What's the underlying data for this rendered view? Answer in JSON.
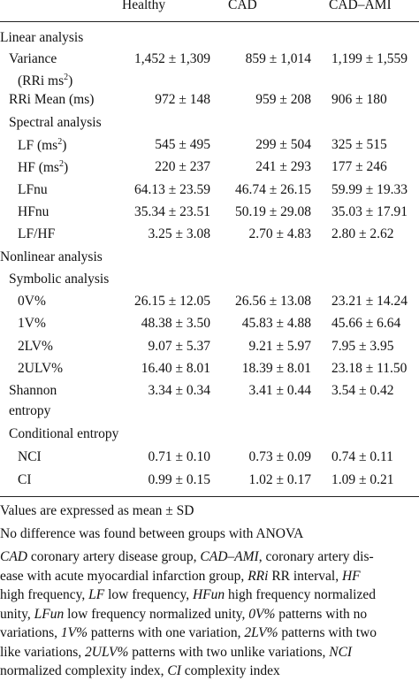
{
  "table": {
    "headers": [
      "Healthy",
      "CAD",
      "CAD–AMI"
    ],
    "rows": [
      {
        "label": "Linear analysis",
        "level": 1
      },
      {
        "label": "Variance",
        "level": 2,
        "values": [
          "1,452 ± 1,309",
          "859 ± 1,014",
          "1,199 ± 1,559"
        ]
      },
      {
        "label": "(RRi ms²)",
        "level": 3
      },
      {
        "label": "RRi Mean (ms)",
        "level": 2,
        "values": [
          "972 ± 148",
          "959 ± 208",
          "906 ± 180"
        ]
      },
      {
        "label": "Spectral analysis",
        "level": 2
      },
      {
        "label": "LF (ms²)",
        "level": 3,
        "values": [
          "545 ± 495",
          "299 ± 504",
          "325 ± 515"
        ]
      },
      {
        "label": "HF (ms²)",
        "level": 3,
        "values": [
          "220 ± 237",
          "241 ± 293",
          "177 ± 246"
        ]
      },
      {
        "label": "LFnu",
        "level": 3,
        "values": [
          "64.13 ± 23.59",
          "46.74 ± 26.15",
          "59.99 ± 19.33"
        ]
      },
      {
        "label": "HFnu",
        "level": 3,
        "values": [
          "35.34 ± 23.51",
          "50.19 ± 29.08",
          "35.03 ± 17.91"
        ]
      },
      {
        "label": "LF/HF",
        "level": 3,
        "values": [
          "3.25 ± 3.08",
          "2.70 ± 4.83",
          "2.80 ± 2.62"
        ]
      },
      {
        "label": "Nonlinear analysis",
        "level": 1
      },
      {
        "label": "Symbolic analysis",
        "level": 2
      },
      {
        "label": "0V%",
        "level": 3,
        "values": [
          "26.15 ± 12.05",
          "26.56 ± 13.08",
          "23.21 ± 14.24"
        ]
      },
      {
        "label": "1V%",
        "level": 3,
        "values": [
          "48.38 ± 3.50",
          "45.83 ± 4.88",
          "45.66 ± 6.64"
        ]
      },
      {
        "label": "2LV%",
        "level": 3,
        "values": [
          "9.07 ± 5.37",
          "9.21 ± 5.97",
          "7.95 ± 3.95"
        ]
      },
      {
        "label": "2ULV%",
        "level": 3,
        "values": [
          "16.40 ± 8.01",
          "18.39 ± 8.01",
          "23.18 ± 11.50"
        ]
      },
      {
        "label": "Shannon",
        "level": 2,
        "values": [
          "3.34 ± 0.34",
          "3.41 ± 0.44",
          "3.54 ± 0.42"
        ]
      },
      {
        "label": "entropy",
        "level": 2
      },
      {
        "label": "Conditional entropy",
        "level": 2
      },
      {
        "label": "NCI",
        "level": 3,
        "values": [
          "0.71 ± 0.10",
          "0.73 ± 0.09",
          "0.74 ± 0.11"
        ]
      },
      {
        "label": "CI",
        "level": 3,
        "values": [
          "0.99 ± 0.15",
          "1.02 ± 0.17",
          "1.09 ± 0.21"
        ]
      }
    ]
  },
  "notes": [
    "Values are expressed as mean ± SD",
    "No difference was found between groups with ANOVA"
  ],
  "footnote_lines": [
    [
      [
        "i",
        "CAD"
      ],
      [
        "t",
        " coronary artery disease group, "
      ],
      [
        "i",
        "CAD–AMI"
      ],
      [
        "t",
        ", coronary artery dis-"
      ]
    ],
    [
      [
        "t",
        "ease with acute myocardial infarction group, "
      ],
      [
        "i",
        "RRi"
      ],
      [
        "t",
        " RR interval, "
      ],
      [
        "i",
        "HF"
      ]
    ],
    [
      [
        "t",
        "high frequency, "
      ],
      [
        "i",
        "LF"
      ],
      [
        "t",
        " low frequency, "
      ],
      [
        "i",
        "HFun"
      ],
      [
        "t",
        " high frequency normalized"
      ]
    ],
    [
      [
        "t",
        "unity, "
      ],
      [
        "i",
        "LFun"
      ],
      [
        "t",
        " low frequency normalized unity, "
      ],
      [
        "i",
        "0V%"
      ],
      [
        "t",
        " patterns with no"
      ]
    ],
    [
      [
        "t",
        "variations, "
      ],
      [
        "i",
        "1V%"
      ],
      [
        "t",
        " patterns with one variation, "
      ],
      [
        "i",
        "2LV%"
      ],
      [
        "t",
        " patterns with two"
      ]
    ],
    [
      [
        "t",
        "like variations, "
      ],
      [
        "i",
        "2ULV%"
      ],
      [
        "t",
        " patterns with two unlike variations, "
      ],
      [
        "i",
        "NCI"
      ]
    ],
    [
      [
        "t",
        "normalized complexity index, "
      ],
      [
        "i",
        "CI"
      ],
      [
        "t",
        " complexity index"
      ]
    ]
  ]
}
